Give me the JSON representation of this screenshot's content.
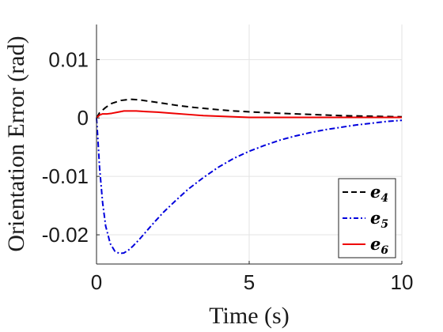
{
  "chart_data": {
    "type": "line",
    "title": "",
    "xlabel": "Time (s)",
    "ylabel": "Orientation Error (rad)",
    "xlim": [
      0,
      10
    ],
    "ylim": [
      -0.025,
      0.016
    ],
    "x_ticks": [
      0,
      5,
      10
    ],
    "x_tick_labels": [
      "0",
      "5",
      "10"
    ],
    "y_ticks": [
      0.01,
      0,
      -0.01,
      -0.02
    ],
    "y_tick_labels": [
      "0.01",
      "0",
      "-0.01",
      "-0.02"
    ],
    "grid": true,
    "legend_position": "bottom-right",
    "series": [
      {
        "name": "e",
        "subscript": "4",
        "color": "#000000",
        "dash": "dashed",
        "x": [
          0,
          0.1,
          0.3,
          0.5,
          0.8,
          1.1,
          1.4,
          1.8,
          2.2,
          2.7,
          3.2,
          3.8,
          4.5,
          5.2,
          6,
          7,
          8,
          9,
          10
        ],
        "y": [
          0,
          0.0009,
          0.0018,
          0.0025,
          0.003,
          0.0032,
          0.0031,
          0.0028,
          0.0025,
          0.0021,
          0.0018,
          0.0015,
          0.0012,
          0.001,
          0.0008,
          0.0006,
          0.0004,
          0.0003,
          0.0002
        ]
      },
      {
        "name": "e",
        "subscript": "5",
        "color": "#0000dd",
        "dash": "dashdot",
        "x": [
          0,
          0.05,
          0.1,
          0.2,
          0.3,
          0.45,
          0.6,
          0.75,
          0.9,
          1.05,
          1.2,
          1.4,
          1.6,
          1.9,
          2.2,
          2.6,
          3,
          3.5,
          4,
          4.5,
          5,
          5.5,
          6,
          6.5,
          7,
          7.5,
          8,
          8.5,
          9,
          9.5,
          10
        ],
        "y": [
          0,
          -0.004,
          -0.0085,
          -0.0145,
          -0.0185,
          -0.0215,
          -0.0228,
          -0.0232,
          -0.0231,
          -0.0226,
          -0.0219,
          -0.0208,
          -0.0196,
          -0.0178,
          -0.0161,
          -0.0141,
          -0.0122,
          -0.0102,
          -0.0084,
          -0.0069,
          -0.0057,
          -0.0047,
          -0.0038,
          -0.0031,
          -0.0025,
          -0.002,
          -0.0016,
          -0.0012,
          -0.0009,
          -0.0006,
          -0.0004
        ]
      },
      {
        "name": "e",
        "subscript": "6",
        "color": "#ee0000",
        "dash": "solid",
        "x": [
          0,
          0.1,
          0.2,
          0.35,
          0.5,
          0.7,
          0.9,
          1.1,
          1.3,
          1.6,
          2,
          2.5,
          3,
          3.5,
          4,
          4.5,
          5,
          6,
          7,
          8,
          9,
          10
        ],
        "y": [
          0,
          0.0005,
          0.0007,
          0.0007,
          0.0008,
          0.001,
          0.0012,
          0.0012,
          0.0012,
          0.0011,
          0.001,
          0.0008,
          0.0006,
          0.0004,
          0.0003,
          0.0002,
          0.0001,
          0.0001,
          0.0001,
          0.0001,
          0.0001,
          0.0001
        ]
      }
    ]
  }
}
